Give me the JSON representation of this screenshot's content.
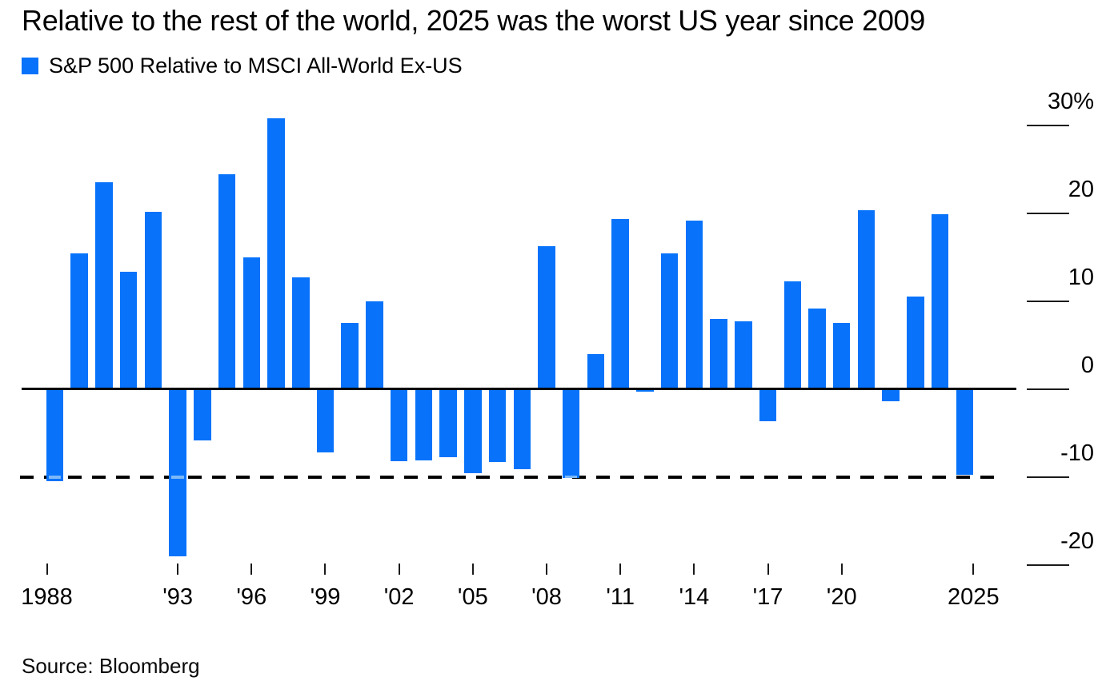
{
  "title": "Relative to the rest of the world, 2025 was the worst US year since 2009",
  "legend": {
    "label": "S&P 500 Relative to MSCI All-World Ex-US"
  },
  "source": "Source: Bloomberg",
  "colors": {
    "bar": "#0873fa",
    "bar_dash_overlay": "#7db9f8",
    "axis": "#000000",
    "text": "#000000",
    "background": "#ffffff"
  },
  "chart_data": {
    "type": "bar",
    "title": "Relative to the rest of the world, 2025 was the worst US year since 2009",
    "series_name": "S&P 500 Relative to MSCI All-World Ex-US",
    "unit": "%",
    "grid": false,
    "legend_position": "top-left",
    "x": [
      1988,
      1989,
      1990,
      1991,
      1992,
      1993,
      1994,
      1995,
      1996,
      1997,
      1998,
      1999,
      2000,
      2001,
      2002,
      2003,
      2004,
      2005,
      2006,
      2007,
      2008,
      2009,
      2010,
      2011,
      2012,
      2013,
      2014,
      2015,
      2016,
      2017,
      2018,
      2019,
      2020,
      2021,
      2022,
      2023,
      2024,
      2025
    ],
    "values": [
      -10.5,
      15.4,
      23.5,
      13.3,
      20.1,
      -19.0,
      -5.9,
      24.4,
      15.0,
      30.8,
      12.7,
      -7.2,
      7.5,
      10.0,
      -8.2,
      -8.1,
      -7.8,
      -9.6,
      -8.3,
      -9.1,
      16.2,
      -10.1,
      4.0,
      19.3,
      -0.3,
      15.4,
      19.1,
      8.0,
      7.7,
      -3.7,
      12.2,
      9.1,
      7.5,
      20.3,
      -1.4,
      10.5,
      19.9,
      -9.8
    ],
    "ylim": [
      -22,
      31
    ],
    "yticks": [
      {
        "label": "30%",
        "value": 30
      },
      {
        "label": "20",
        "value": 20
      },
      {
        "label": "10",
        "value": 10
      },
      {
        "label": "0",
        "value": 0
      },
      {
        "label": "-10",
        "value": -10
      },
      {
        "label": "-20",
        "value": -20
      }
    ],
    "xticks": [
      {
        "label": "1988",
        "year": 1988
      },
      {
        "label": "'93",
        "year": 1993
      },
      {
        "label": "'96",
        "year": 1996
      },
      {
        "label": "'99",
        "year": 1999
      },
      {
        "label": "'02",
        "year": 2002
      },
      {
        "label": "'05",
        "year": 2005
      },
      {
        "label": "'08",
        "year": 2008
      },
      {
        "label": "'11",
        "year": 2011
      },
      {
        "label": "'14",
        "year": 2014
      },
      {
        "label": "'17",
        "year": 2017
      },
      {
        "label": "'20",
        "year": 2020
      },
      {
        "label": "2025",
        "year": 2025
      }
    ],
    "reference_line": {
      "style": "dashed",
      "value": -10,
      "meaning": "level of the 2025 bar; worst year since 2009"
    }
  }
}
